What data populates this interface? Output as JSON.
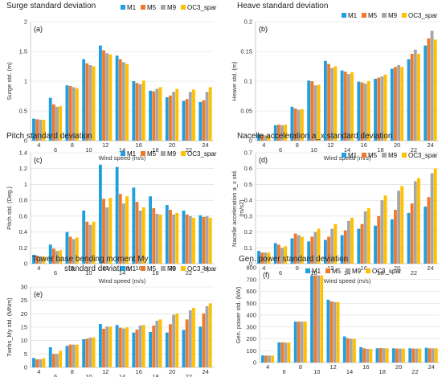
{
  "colors": {
    "M1": "#1f9fe0",
    "M5": "#f07a2a",
    "M9": "#a6a6a6",
    "OC3_spar": "#ffc000"
  },
  "chart_data": [
    {
      "type": "bar",
      "panel": "(a)",
      "title": "Surge standard deviation",
      "xlabel": "Wind speed (m/s)",
      "ylabel": "Surge std. (m)",
      "categories": [
        "4",
        "6",
        "8",
        "10",
        "12",
        "14",
        "16",
        "18",
        "20",
        "22",
        "24"
      ],
      "ylim": [
        0,
        2
      ],
      "yticks": [
        "0",
        "0.5",
        "1",
        "1.5",
        "2"
      ],
      "legend": "top-right",
      "series": [
        {
          "name": "M1",
          "values": [
            0.37,
            0.72,
            0.93,
            1.37,
            1.6,
            1.43,
            1.0,
            0.84,
            0.73,
            0.67,
            0.65
          ]
        },
        {
          "name": "M5",
          "values": [
            0.36,
            0.61,
            0.92,
            1.3,
            1.52,
            1.37,
            0.97,
            0.83,
            0.76,
            0.7,
            0.68
          ]
        },
        {
          "name": "M9",
          "values": [
            0.35,
            0.57,
            0.9,
            1.27,
            1.47,
            1.32,
            0.95,
            0.87,
            0.82,
            0.82,
            0.82
          ]
        },
        {
          "name": "OC3_spar",
          "values": [
            0.35,
            0.58,
            0.88,
            1.25,
            1.45,
            1.29,
            1.01,
            0.9,
            0.87,
            0.86,
            0.9
          ]
        }
      ]
    },
    {
      "type": "bar",
      "panel": "(b)",
      "title": "Heave standard deviation",
      "xlabel": "Wind speed (m/s)",
      "ylabel": "Heave std. (m)",
      "categories": [
        "4",
        "6",
        "8",
        "10",
        "12",
        "14",
        "16",
        "18",
        "20",
        "22",
        "24"
      ],
      "ylim": [
        0,
        0.2
      ],
      "yticks": [
        "0",
        "0.05",
        "0.1",
        "0.15",
        "0.2"
      ],
      "legend": "top-right",
      "series": [
        {
          "name": "M1",
          "values": [
            0.011,
            0.026,
            0.057,
            0.101,
            0.134,
            0.118,
            0.099,
            0.104,
            0.121,
            0.137,
            0.16
          ]
        },
        {
          "name": "M5",
          "values": [
            0.01,
            0.027,
            0.054,
            0.1,
            0.129,
            0.116,
            0.098,
            0.106,
            0.124,
            0.146,
            0.172
          ]
        },
        {
          "name": "M9",
          "values": [
            0.009,
            0.026,
            0.052,
            0.093,
            0.122,
            0.112,
            0.096,
            0.108,
            0.127,
            0.153,
            0.185
          ]
        },
        {
          "name": "OC3_spar",
          "values": [
            0.009,
            0.027,
            0.053,
            0.094,
            0.125,
            0.115,
            0.1,
            0.111,
            0.124,
            0.146,
            0.17
          ]
        }
      ]
    },
    {
      "type": "bar",
      "panel": "(c)",
      "title": "Pitch standard deviation",
      "xlabel": "Wind speed (m/s)",
      "ylabel": "Pitch std. (Deg.)",
      "categories": [
        "4",
        "6",
        "8",
        "10",
        "12",
        "14",
        "16",
        "18",
        "20",
        "22",
        "24"
      ],
      "ylim": [
        0,
        1.4
      ],
      "yticks": [
        "0",
        "0.2",
        "0.4",
        "0.6",
        "0.8",
        "1",
        "1.2",
        "1.4"
      ],
      "legend": "top-right",
      "series": [
        {
          "name": "M1",
          "values": [
            0.11,
            0.24,
            0.4,
            0.67,
            1.25,
            1.22,
            0.96,
            0.85,
            0.74,
            0.67,
            0.61
          ]
        },
        {
          "name": "M5",
          "values": [
            0.1,
            0.19,
            0.34,
            0.53,
            0.82,
            0.88,
            0.78,
            0.7,
            0.68,
            0.62,
            0.59
          ]
        },
        {
          "name": "M9",
          "values": [
            0.09,
            0.16,
            0.31,
            0.49,
            0.71,
            0.76,
            0.67,
            0.63,
            0.62,
            0.6,
            0.6
          ]
        },
        {
          "name": "OC3_spar",
          "values": [
            0.09,
            0.17,
            0.33,
            0.53,
            0.83,
            0.85,
            0.71,
            0.62,
            0.64,
            0.58,
            0.58
          ]
        }
      ]
    },
    {
      "type": "bar",
      "panel": "(d)",
      "title": "Nacelle acceleration a_x  standard deviation",
      "xlabel": "Wind speed (m/s)",
      "ylabel": "Nacelle acceleration a_x std.",
      "ylabel2": "(m/s2)",
      "categories": [
        "4",
        "6",
        "8",
        "10",
        "12",
        "14",
        "16",
        "18",
        "20",
        "22",
        "24"
      ],
      "ylim": [
        0,
        0.7
      ],
      "yticks": [
        "0",
        "0.1",
        "0.2",
        "0.3",
        "0.4",
        "0.5",
        "0.6",
        "0.7"
      ],
      "legend": "top-right",
      "series": [
        {
          "name": "M1",
          "values": [
            0.08,
            0.13,
            0.16,
            0.14,
            0.15,
            0.18,
            0.22,
            0.24,
            0.28,
            0.32,
            0.36
          ]
        },
        {
          "name": "M5",
          "values": [
            0.07,
            0.12,
            0.19,
            0.17,
            0.17,
            0.21,
            0.25,
            0.3,
            0.34,
            0.38,
            0.42
          ]
        },
        {
          "name": "M9",
          "values": [
            0.07,
            0.1,
            0.18,
            0.2,
            0.22,
            0.27,
            0.33,
            0.4,
            0.46,
            0.52,
            0.57
          ]
        },
        {
          "name": "OC3_spar",
          "values": [
            0.07,
            0.11,
            0.17,
            0.22,
            0.25,
            0.29,
            0.35,
            0.43,
            0.49,
            0.54,
            0.6
          ]
        }
      ]
    },
    {
      "type": "bar",
      "panel": "(e)",
      "title": "Tower base bending moment My",
      "title2": "standard deviation",
      "xlabel": "Wind speed (m/s)",
      "ylabel": "Twrbs_My std. (MNm)",
      "categories": [
        "4",
        "6",
        "8",
        "10",
        "12",
        "14",
        "16",
        "18",
        "20",
        "22",
        "24"
      ],
      "ylim": [
        0,
        30
      ],
      "yticks": [
        "0",
        "5",
        "10",
        "15",
        "20",
        "25",
        "30"
      ],
      "legend": "top-right",
      "series": [
        {
          "name": "M1",
          "values": [
            3.5,
            7.5,
            8.0,
            10.5,
            16.2,
            15.8,
            13.0,
            13.2,
            13.0,
            14.0,
            15.2
          ]
        },
        {
          "name": "M5",
          "values": [
            3.0,
            5.0,
            8.5,
            10.7,
            14.4,
            14.8,
            14.1,
            15.6,
            16.1,
            17.9,
            20.1
          ]
        },
        {
          "name": "M9",
          "values": [
            3.0,
            5.0,
            8.5,
            11.1,
            15.2,
            14.5,
            15.6,
            17.4,
            19.6,
            21.3,
            22.8
          ]
        },
        {
          "name": "OC3_spar",
          "values": [
            3.4,
            6.2,
            8.5,
            11.2,
            15.2,
            14.9,
            15.8,
            17.9,
            20.1,
            22.2,
            23.9
          ]
        }
      ]
    },
    {
      "type": "bar",
      "panel": "(f)",
      "title": "Gen. power standard deviation",
      "xlabel": "Wind speed (m/s)",
      "ylabel": "Gen. power std. (kW)",
      "categories": [
        "4",
        "6",
        "8",
        "10",
        "12",
        "14",
        "16",
        "18",
        "20",
        "22",
        "24"
      ],
      "ylim": [
        0,
        800
      ],
      "yticks": [
        "0",
        "100",
        "200",
        "300",
        "400",
        "500",
        "600",
        "700",
        "800"
      ],
      "legend": "top-center",
      "series": [
        {
          "name": "M1",
          "values": [
            60,
            170,
            345,
            735,
            530,
            220,
            130,
            120,
            120,
            120,
            125
          ]
        },
        {
          "name": "M5",
          "values": [
            58,
            170,
            345,
            735,
            515,
            205,
            120,
            122,
            118,
            118,
            120
          ]
        },
        {
          "name": "M9",
          "values": [
            58,
            168,
            345,
            735,
            510,
            200,
            115,
            120,
            118,
            118,
            120
          ]
        },
        {
          "name": "OC3_spar",
          "values": [
            58,
            168,
            345,
            735,
            510,
            200,
            115,
            120,
            118,
            118,
            120
          ]
        }
      ]
    }
  ]
}
